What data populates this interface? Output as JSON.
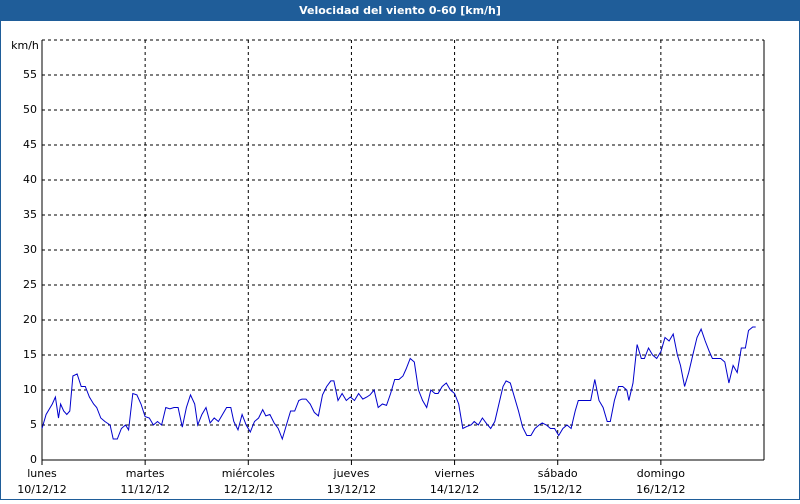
{
  "chart_data": {
    "type": "line",
    "title": "Velocidad del viento 0-60 [km/h]",
    "y_label": "km/h",
    "xlim": [
      0,
      7
    ],
    "ylim": [
      0,
      60
    ],
    "xticks": [
      {
        "value": 0,
        "label": "lunes",
        "date": "10/12/12"
      },
      {
        "value": 1,
        "label": "martes",
        "date": "11/12/12"
      },
      {
        "value": 2,
        "label": "miércoles",
        "date": "12/12/12"
      },
      {
        "value": 3,
        "label": "jueves",
        "date": "13/12/12"
      },
      {
        "value": 4,
        "label": "viernes",
        "date": "14/12/12"
      },
      {
        "value": 5,
        "label": "sábado",
        "date": "15/12/12"
      },
      {
        "value": 6,
        "label": "domingo",
        "date": "16/12/12"
      }
    ],
    "yticks": [
      0,
      5,
      10,
      15,
      20,
      25,
      30,
      35,
      40,
      45,
      50,
      55
    ],
    "grid": true,
    "series": [
      {
        "name": "Velocidad del viento",
        "color": "#0000cc",
        "x": [
          0,
          0.04,
          0.1,
          0.13,
          0.16,
          0.18,
          0.21,
          0.24,
          0.27,
          0.3,
          0.34,
          0.38,
          0.42,
          0.46,
          0.5,
          0.53,
          0.57,
          0.61,
          0.66,
          0.69,
          0.73,
          0.77,
          0.81,
          0.84,
          0.88,
          0.92,
          0.96,
          1.0,
          1.04,
          1.08,
          1.12,
          1.16,
          1.2,
          1.24,
          1.28,
          1.32,
          1.36,
          1.4,
          1.44,
          1.48,
          1.51,
          1.55,
          1.59,
          1.63,
          1.67,
          1.71,
          1.75,
          1.79,
          1.83,
          1.86,
          1.9,
          1.94,
          1.98,
          2.02,
          2.06,
          2.1,
          2.14,
          2.17,
          2.21,
          2.25,
          2.29,
          2.33,
          2.37,
          2.41,
          2.45,
          2.49,
          2.52,
          2.56,
          2.6,
          2.64,
          2.68,
          2.72,
          2.76,
          2.8,
          2.83,
          2.87,
          2.91,
          2.95,
          2.99,
          3.03,
          3.07,
          3.11,
          3.15,
          3.18,
          3.22,
          3.26,
          3.3,
          3.34,
          3.38,
          3.42,
          3.46,
          3.5,
          3.53,
          3.57,
          3.61,
          3.65,
          3.69,
          3.73,
          3.77,
          3.81,
          3.84,
          3.88,
          3.92,
          3.96,
          4.0,
          4.04,
          4.08,
          4.12,
          4.16,
          4.19,
          4.23,
          4.27,
          4.31,
          4.35,
          4.39,
          4.43,
          4.47,
          4.5,
          4.54,
          4.58,
          4.62,
          4.66,
          4.7,
          4.74,
          4.78,
          4.82,
          4.85,
          4.89,
          4.93,
          4.97,
          5.01,
          5.05,
          5.09,
          5.13,
          5.17,
          5.2,
          5.24,
          5.28,
          5.32,
          5.36,
          5.4,
          5.44,
          5.48,
          5.51,
          5.55,
          5.59,
          5.63,
          5.67,
          5.69,
          5.73,
          5.77,
          5.81,
          5.84,
          5.88,
          5.92,
          5.96,
          6.0,
          6.04,
          6.08,
          6.12,
          6.16,
          6.19,
          6.23,
          6.27,
          6.31,
          6.35,
          6.39,
          6.43,
          6.47,
          6.5,
          6.54,
          6.58,
          6.62,
          6.66,
          6.7,
          6.74,
          6.78,
          6.82,
          6.85,
          6.89,
          6.92
        ],
        "values": [
          4.5,
          6.5,
          8,
          9,
          6,
          8,
          7,
          6.5,
          7,
          12,
          12.3,
          10.5,
          10.5,
          9,
          8,
          7.5,
          6,
          5.5,
          5,
          3,
          3,
          4.5,
          5,
          4.3,
          9.5,
          9.3,
          8,
          6.2,
          6,
          5,
          5.5,
          5,
          7.5,
          7.3,
          7.5,
          7.5,
          4.7,
          7.5,
          9.3,
          8,
          5,
          6.5,
          7.5,
          5.3,
          6,
          5.5,
          6.5,
          7.5,
          7.5,
          5.5,
          4.3,
          6.5,
          5,
          4,
          5.5,
          6,
          7.2,
          6.3,
          6.5,
          5.3,
          4.5,
          3,
          5,
          7,
          7,
          8.5,
          8.7,
          8.7,
          8,
          6.8,
          6.3,
          9.3,
          10.5,
          11.3,
          11.3,
          8.5,
          9.5,
          8.5,
          9,
          8.5,
          9.5,
          8.7,
          9,
          9.3,
          10,
          7.5,
          8,
          7.8,
          9.5,
          11.5,
          11.5,
          12,
          13,
          14.5,
          14,
          10,
          8.5,
          7.5,
          10,
          9.5,
          9.5,
          10.5,
          11,
          10,
          9.5,
          8,
          4.5,
          4.8,
          5,
          5.5,
          5,
          6,
          5.2,
          4.5,
          5.5,
          8,
          10.5,
          11.3,
          11,
          9,
          7,
          4.7,
          3.5,
          3.5,
          4.5,
          5,
          5.3,
          5,
          4.5,
          4.5,
          3.5,
          4.5,
          5,
          4.5,
          7,
          8.5,
          8.5,
          8.5,
          8.5,
          11.5,
          8.5,
          7.5,
          5.5,
          5.5,
          8.5,
          10.5,
          10.5,
          10,
          8.5,
          11,
          16.5,
          14.5,
          14.5,
          16,
          15,
          14.5,
          15.5,
          17.5,
          17,
          18,
          15,
          13.5,
          10.5,
          12.5,
          15,
          17.5,
          18.7,
          17,
          15.5,
          14.5,
          14.5,
          14.5,
          14,
          11,
          13.5,
          12.5,
          16,
          16,
          18.5,
          19,
          19
        ]
      }
    ]
  }
}
